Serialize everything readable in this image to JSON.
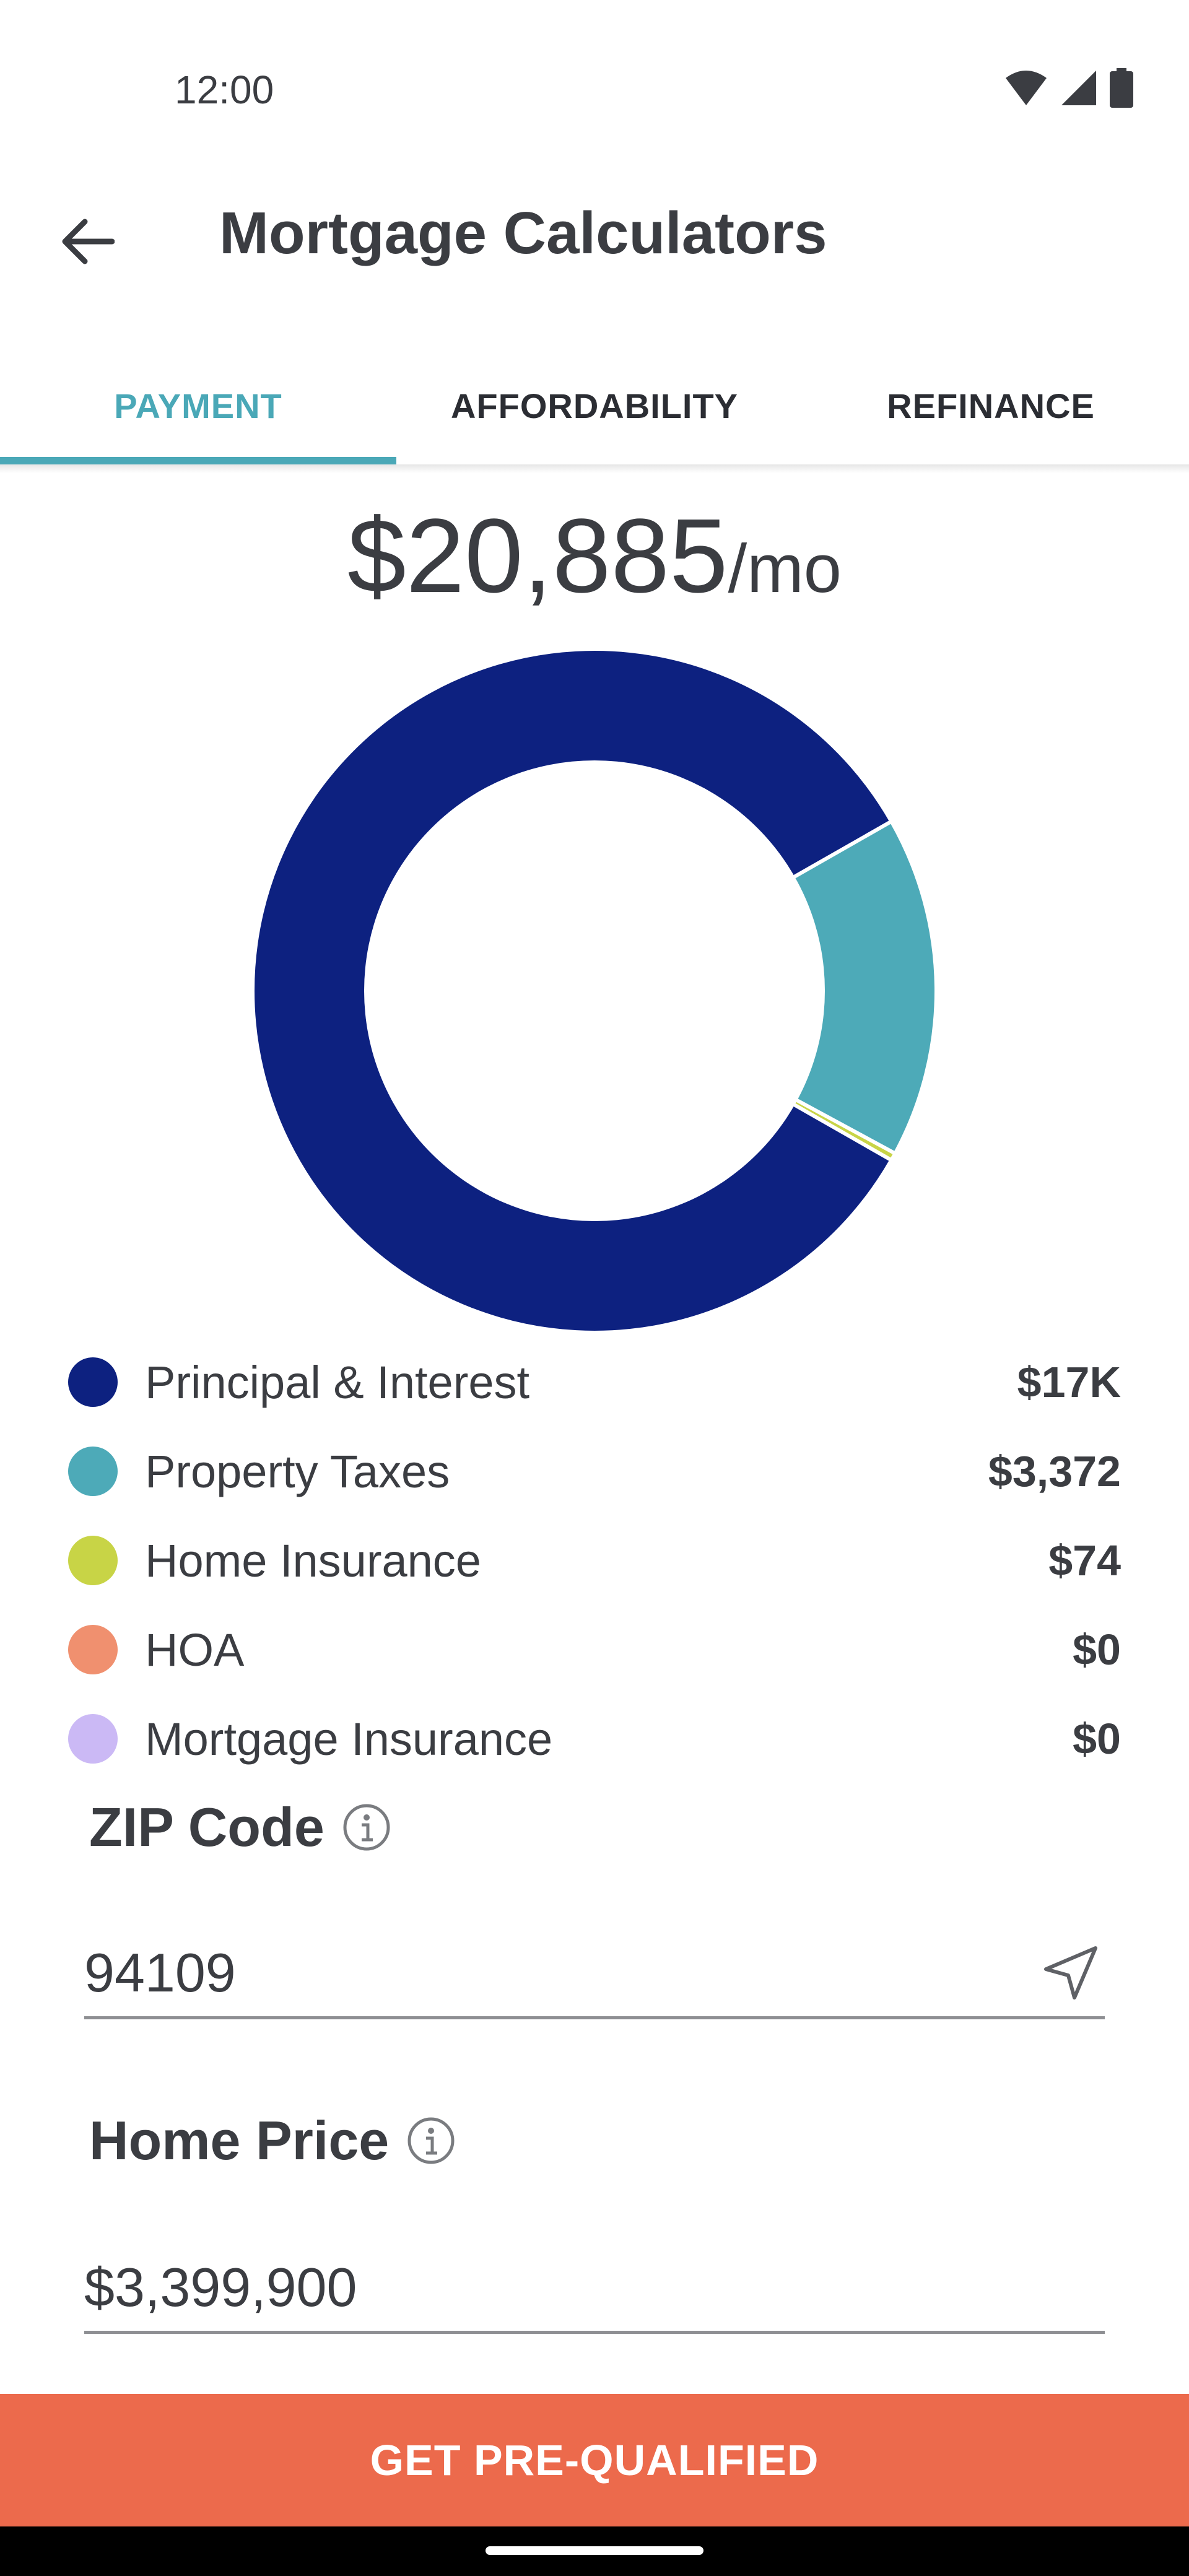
{
  "status_bar": {
    "time": "12:00",
    "icons": [
      "wifi-icon",
      "signal-icon",
      "battery-icon"
    ]
  },
  "app_bar": {
    "back_icon": "arrow-left-icon",
    "title": "Mortgage Calculators"
  },
  "tabs": [
    {
      "label": "PAYMENT",
      "active": true
    },
    {
      "label": "AFFORDABILITY",
      "active": false
    },
    {
      "label": "REFINANCE",
      "active": false
    }
  ],
  "payment": {
    "amount": "$20,885",
    "unit": "/mo"
  },
  "chart_data": {
    "type": "pie",
    "donut": true,
    "categories": [
      "Principal & Interest",
      "Property Taxes",
      "Home Insurance",
      "HOA",
      "Mortgage Insurance"
    ],
    "values": [
      17439,
      3372,
      74,
      0,
      0
    ],
    "colors": [
      "#0d2180",
      "#4daab8",
      "#c8d446",
      "#f0906f",
      "#cbb9f5"
    ],
    "legend_placement": "below"
  },
  "legend": [
    {
      "label": "Principal & Interest",
      "value": "$17K",
      "color": "#0d2180"
    },
    {
      "label": "Property Taxes",
      "value": "$3,372",
      "color": "#4daab8"
    },
    {
      "label": "Home Insurance",
      "value": "$74",
      "color": "#c8d446"
    },
    {
      "label": "HOA",
      "value": "$0",
      "color": "#f0906f"
    },
    {
      "label": "Mortgage Insurance",
      "value": "$0",
      "color": "#cbb9f5"
    }
  ],
  "form": {
    "zip": {
      "label": "ZIP Code",
      "value": "94109",
      "icon": "info-icon",
      "action_icon": "location-arrow-icon"
    },
    "home_price": {
      "label": "Home Price",
      "value": "$3,399,900",
      "icon": "info-icon"
    }
  },
  "cta": {
    "label": "GET PRE-QUALIFIED",
    "color": "#ec6a4c"
  }
}
